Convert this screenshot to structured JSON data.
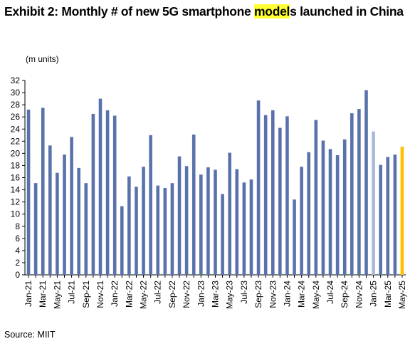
{
  "header": {
    "title_prefix": "Exhibit 2: Monthly # of new 5G smartphone ",
    "title_highlight": "model",
    "title_suffix": "s launched in China",
    "highlight_color": "#ffff33"
  },
  "chart_data": {
    "type": "bar",
    "title": "Exhibit 2: Monthly # of new 5G smartphone models launched in China",
    "unit_label": "(m units)",
    "ylim": [
      0,
      32
    ],
    "yticks": [
      0,
      2,
      4,
      6,
      8,
      10,
      12,
      14,
      16,
      18,
      20,
      22,
      24,
      26,
      28,
      30,
      32
    ],
    "grid": false,
    "categories": [
      "Jan-21",
      "Feb-21",
      "Mar-21",
      "Apr-21",
      "May-21",
      "Jun-21",
      "Jul-21",
      "Aug-21",
      "Sep-21",
      "Oct-21",
      "Nov-21",
      "Dec-21",
      "Jan-22",
      "Feb-22",
      "Mar-22",
      "Apr-22",
      "May-22",
      "Jun-22",
      "Jul-22",
      "Aug-22",
      "Sep-22",
      "Oct-22",
      "Nov-22",
      "Dec-22",
      "Jan-23",
      "Feb-23",
      "Mar-23",
      "Apr-23",
      "May-23",
      "Jun-23",
      "Jul-23",
      "Aug-23",
      "Sep-23",
      "Oct-23",
      "Nov-23",
      "Dec-23",
      "Jan-24",
      "Feb-24",
      "Mar-24",
      "Apr-24",
      "May-24",
      "Jun-24",
      "Jul-24",
      "Aug-24",
      "Sep-24",
      "Oct-24",
      "Nov-24",
      "Dec-24",
      "Jan-25",
      "Feb-25",
      "Mar-25",
      "Apr-25",
      "May-25"
    ],
    "xtick_labels": [
      "Jan-21",
      "Mar-21",
      "May-21",
      "Jul-21",
      "Sep-21",
      "Nov-21",
      "Jan-22",
      "Mar-22",
      "May-22",
      "Jul-22",
      "Sep-22",
      "Nov-22",
      "Jan-23",
      "Mar-23",
      "May-23",
      "Jul-23",
      "Sep-23",
      "Nov-23",
      "Jan-24",
      "Mar-24",
      "May-24",
      "Jul-24",
      "Sep-24",
      "Nov-24",
      "Jan-25",
      "Mar-25",
      "May-25"
    ],
    "values": [
      27.2,
      15.1,
      27.5,
      21.3,
      16.8,
      19.8,
      22.7,
      17.6,
      15.1,
      26.5,
      29.0,
      27.1,
      26.2,
      11.3,
      16.2,
      14.5,
      17.8,
      23.0,
      14.7,
      14.3,
      15.1,
      19.5,
      17.9,
      23.1,
      16.5,
      17.7,
      17.3,
      13.3,
      20.1,
      17.4,
      15.2,
      15.7,
      28.7,
      26.3,
      27.1,
      24.2,
      26.1,
      12.4,
      17.8,
      20.2,
      25.5,
      22.1,
      20.7,
      19.7,
      22.3,
      26.6,
      27.3,
      30.4,
      23.6,
      18.1,
      19.4,
      19.8,
      21.1
    ],
    "bar_colors": {
      "default": "#5a72ab",
      "Jan-25": "#a9b8d6",
      "May-25": "#ffc000"
    }
  },
  "footer": {
    "source": "Source: MIIT"
  }
}
